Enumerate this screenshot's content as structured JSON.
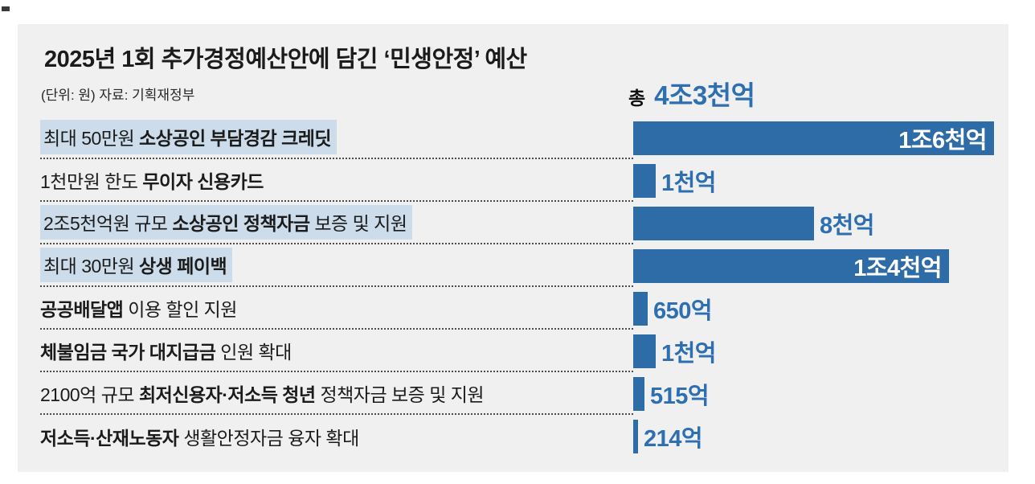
{
  "colors": {
    "bar_blue": "#2e6ca7",
    "value_blue": "#2d6fb0",
    "highlight_bg": "#ccdcea",
    "panel_bg": "#f0f0f0",
    "text_dark": "#1b1b1b"
  },
  "header": {
    "title": "2025년 1회 추가경정예산안에 담긴 ‘민생안정’ 예산",
    "unit_source": "(단위: 원) 자료: 기획재정부",
    "total_prefix": "총",
    "total_value": "4조3천억"
  },
  "chart_data": {
    "type": "bar",
    "orientation": "horizontal",
    "title": "2025년 1회 추가경정예산안에 담긴 ‘민생안정’ 예산",
    "unit": "원",
    "source": "기획재정부",
    "total": {
      "prefix": "총",
      "value_text": "4조3천억",
      "value_eok": 43000
    },
    "max_value_eok": 16000,
    "grid": false,
    "legend": false,
    "categories": [
      "최대 50만원 소상공인 부담경감 크레딧",
      "1천만원 한도 무이자 신용카드",
      "2조5천억원 규모 소상공인 정책자금 보증 및 지원",
      "최대 30만원 상생 페이백",
      "공공배달앱 이용 할인 지원",
      "체불임금 국가 대지급금 인원 확대",
      "2100억 규모 최저신용자·저소득 청년 정책자금 보증 및 지원",
      "저소득·산재노동자 생활안정자금 융자 확대"
    ],
    "values_eok": [
      16000,
      1000,
      8000,
      14000,
      650,
      1000,
      515,
      214
    ],
    "value_labels": [
      "1조6천억",
      "1천억",
      "8천억",
      "1조4천억",
      "650억",
      "1천억",
      "515억",
      "214억"
    ],
    "rows": [
      {
        "segments": [
          {
            "text": "최대 50만원 ",
            "bold": false
          },
          {
            "text": "소상공인 부담경감 크레딧",
            "bold": true
          }
        ],
        "highlighted": true,
        "value_eok": 16000,
        "value_label": "1조6천억",
        "label_inside_bar": true
      },
      {
        "segments": [
          {
            "text": "1천만원 한도 ",
            "bold": false
          },
          {
            "text": "무이자 신용카드",
            "bold": true
          }
        ],
        "highlighted": false,
        "value_eok": 1000,
        "value_label": "1천억",
        "label_inside_bar": false
      },
      {
        "segments": [
          {
            "text": "2조5천억원 규모 ",
            "bold": false
          },
          {
            "text": "소상공인 정책자금",
            "bold": true
          },
          {
            "text": " 보증 및 지원",
            "bold": false
          }
        ],
        "highlighted": true,
        "value_eok": 8000,
        "value_label": "8천억",
        "label_inside_bar": false
      },
      {
        "segments": [
          {
            "text": "최대 30만원 ",
            "bold": false
          },
          {
            "text": "상생 페이백",
            "bold": true
          }
        ],
        "highlighted": true,
        "value_eok": 14000,
        "value_label": "1조4천억",
        "label_inside_bar": true
      },
      {
        "segments": [
          {
            "text": "공공배달앱",
            "bold": true
          },
          {
            "text": " 이용 할인 지원",
            "bold": false
          }
        ],
        "highlighted": false,
        "value_eok": 650,
        "value_label": "650억",
        "label_inside_bar": false
      },
      {
        "segments": [
          {
            "text": "체불임금 국가 대지급금",
            "bold": true
          },
          {
            "text": " 인원 확대",
            "bold": false
          }
        ],
        "highlighted": false,
        "value_eok": 1000,
        "value_label": "1천억",
        "label_inside_bar": false
      },
      {
        "segments": [
          {
            "text": "2100억 규모 ",
            "bold": false
          },
          {
            "text": "최저신용자·저소득 청년",
            "bold": true
          },
          {
            "text": " 정책자금 보증 및 지원",
            "bold": false
          }
        ],
        "highlighted": false,
        "value_eok": 515,
        "value_label": "515억",
        "label_inside_bar": false
      },
      {
        "segments": [
          {
            "text": "저소득·산재노동자",
            "bold": true
          },
          {
            "text": " 생활안정자금 융자 확대",
            "bold": false
          }
        ],
        "highlighted": false,
        "value_eok": 214,
        "value_label": "214억",
        "label_inside_bar": false
      }
    ]
  }
}
